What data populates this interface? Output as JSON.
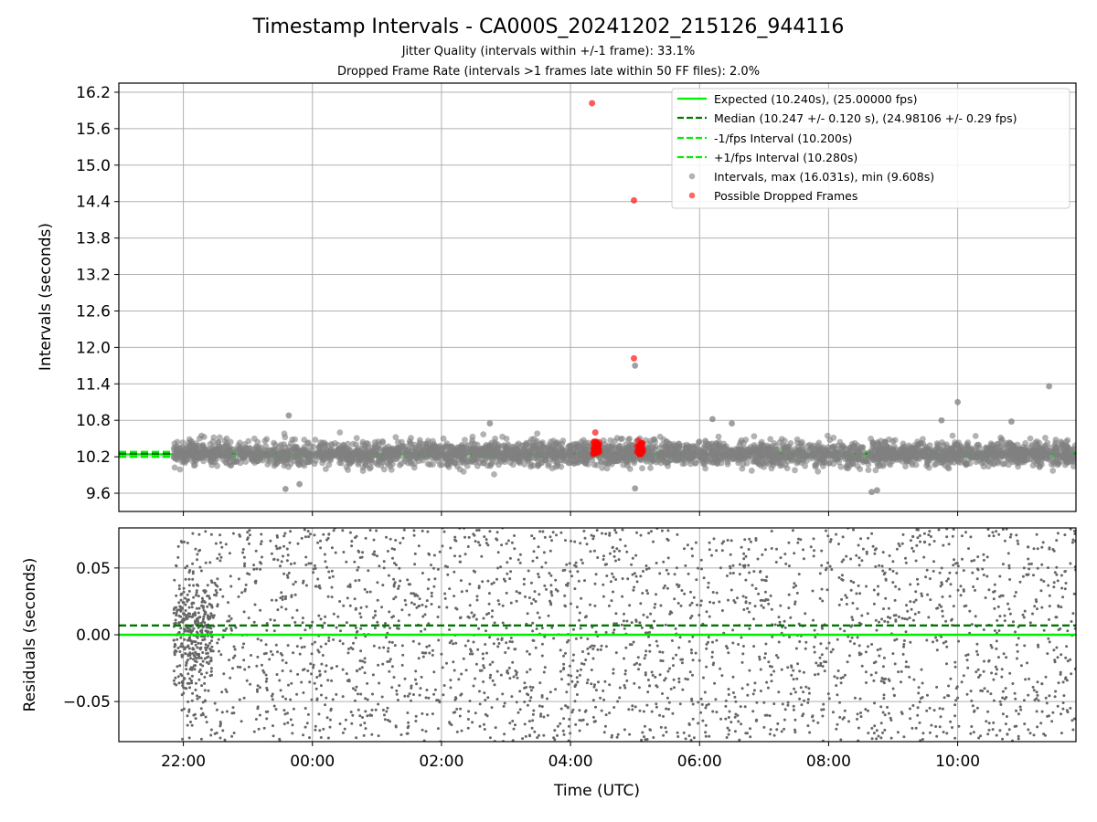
{
  "figure": {
    "title": "Timestamp Intervals - CA000S_20241202_215126_944116",
    "subtitle_1": "Jitter Quality (intervals within +/-1 frame): 33.1%",
    "subtitle_2": "Dropped Frame Rate (intervals >1 frames late within 50 FF files): 2.0%"
  },
  "chart_data": [
    {
      "type": "scatter",
      "ylabel": "Intervals (seconds)",
      "xlabel": "",
      "xlim_hours_label": [
        "21:00",
        "11:50"
      ],
      "ylim": [
        9.3,
        16.35
      ],
      "yticks": [
        "9.6",
        "10.2",
        "10.8",
        "11.4",
        "12.0",
        "12.6",
        "13.2",
        "13.8",
        "14.4",
        "15.0",
        "15.6",
        "16.2"
      ],
      "grid": true,
      "legend_placement": "top-right",
      "lines": [
        {
          "name": "Expected (10.240s), (25.00000 fps)",
          "y": 10.24,
          "color": "#00ee00",
          "style": "solid"
        },
        {
          "name": "Median (10.247 +/- 0.120 s), (24.98106 +/- 0.29 fps)",
          "y": 10.247,
          "color": "#007700",
          "style": "dashed"
        },
        {
          "name": "-1/fps Interval (10.200s)",
          "y": 10.2,
          "color": "#00ee00",
          "style": "dashed"
        },
        {
          "name": "+1/fps Interval (10.280s)",
          "y": 10.28,
          "color": "#00ee00",
          "style": "dashed"
        }
      ],
      "series": [
        {
          "name": "Intervals, max (16.031s), min (9.608s)",
          "color": "#808080",
          "x_range": [
            "21:51",
            "11:50"
          ],
          "typical_spread": [
            9.95,
            10.55
          ],
          "outliers": [
            {
              "x": "23:38",
              "y": 10.88
            },
            {
              "x": "23:35",
              "y": 9.67
            },
            {
              "x": "23:48",
              "y": 9.75
            },
            {
              "x": "02:45",
              "y": 10.75
            },
            {
              "x": "05:00",
              "y": 11.7
            },
            {
              "x": "05:00",
              "y": 9.68
            },
            {
              "x": "06:12",
              "y": 10.82
            },
            {
              "x": "06:30",
              "y": 10.75
            },
            {
              "x": "08:40",
              "y": 9.62
            },
            {
              "x": "08:45",
              "y": 9.65
            },
            {
              "x": "09:45",
              "y": 10.8
            },
            {
              "x": "10:00",
              "y": 11.1
            },
            {
              "x": "10:50",
              "y": 10.78
            },
            {
              "x": "11:25",
              "y": 11.36
            }
          ]
        },
        {
          "name": "Possible Dropped Frames",
          "color": "#ff0000",
          "points": [
            {
              "x": "04:20",
              "y": 16.02
            },
            {
              "x": "04:59",
              "y": 14.42
            },
            {
              "x": "04:59",
              "y": 11.82
            },
            {
              "x": "04:23",
              "y": 10.6
            },
            {
              "x": "04:22",
              "y": 10.45
            },
            {
              "x": "04:23",
              "y": 10.38
            },
            {
              "x": "04:22",
              "y": 10.3
            },
            {
              "x": "04:24",
              "y": 10.27
            },
            {
              "x": "04:25",
              "y": 10.42
            },
            {
              "x": "04:26",
              "y": 10.33
            },
            {
              "x": "05:03",
              "y": 10.47
            },
            {
              "x": "05:04",
              "y": 10.38
            },
            {
              "x": "05:05",
              "y": 10.3
            },
            {
              "x": "05:06",
              "y": 10.33
            },
            {
              "x": "05:02",
              "y": 10.28
            },
            {
              "x": "05:07",
              "y": 10.42
            }
          ]
        }
      ]
    },
    {
      "type": "scatter",
      "ylabel": "Residuals (seconds)",
      "xlabel": "Time (UTC)",
      "xticks": [
        "22:00",
        "00:00",
        "02:00",
        "04:00",
        "06:00",
        "08:00",
        "10:00"
      ],
      "yticks": [
        "−0.05",
        "0.00",
        "0.05"
      ],
      "ylim": [
        -0.08,
        0.08
      ],
      "grid": true,
      "lines": [
        {
          "y": 0.0,
          "color": "#00ee00",
          "style": "solid"
        },
        {
          "y": 0.007,
          "color": "#007700",
          "style": "dashed"
        }
      ],
      "series": [
        {
          "color": "#666666",
          "x_range": [
            "21:51",
            "11:50"
          ],
          "distribution": "uniform",
          "y_range": [
            -0.08,
            0.08
          ]
        }
      ]
    }
  ]
}
